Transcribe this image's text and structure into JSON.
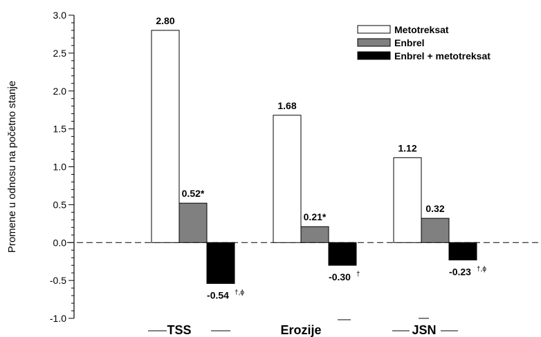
{
  "chart_data": {
    "type": "bar",
    "ylabel": "Promene u odnosu na početno stanje",
    "ylim": [
      -1.0,
      3.0
    ],
    "yticks": [
      "-1.0",
      "-0.5",
      "0.0",
      "0.5",
      "1.0",
      "1.5",
      "2.0",
      "2.5",
      "3.0"
    ],
    "categories": [
      "TSS",
      "Erozije",
      "JSN"
    ],
    "series": [
      {
        "name": "Metotreksat",
        "color": "#ffffff",
        "values": [
          2.8,
          1.68,
          1.12
        ],
        "labels": [
          "2.80",
          "1.68",
          "1.12"
        ],
        "marks": [
          "",
          "",
          ""
        ]
      },
      {
        "name": "Enbrel",
        "color": "#808080",
        "values": [
          0.52,
          0.21,
          0.32
        ],
        "labels": [
          "0.52*",
          "0.21*",
          "0.32"
        ],
        "marks": [
          "",
          "",
          ""
        ]
      },
      {
        "name": "Enbrel + metotreksat",
        "color": "#000000",
        "values": [
          -0.54,
          -0.3,
          -0.23
        ],
        "labels": [
          "-0.54",
          "-0.30",
          "-0.23"
        ],
        "marks": [
          "†,ϕ",
          "†",
          "†,ϕ"
        ]
      }
    ],
    "legend_position": "top-right",
    "zero_line": "dashed",
    "grid": false
  }
}
